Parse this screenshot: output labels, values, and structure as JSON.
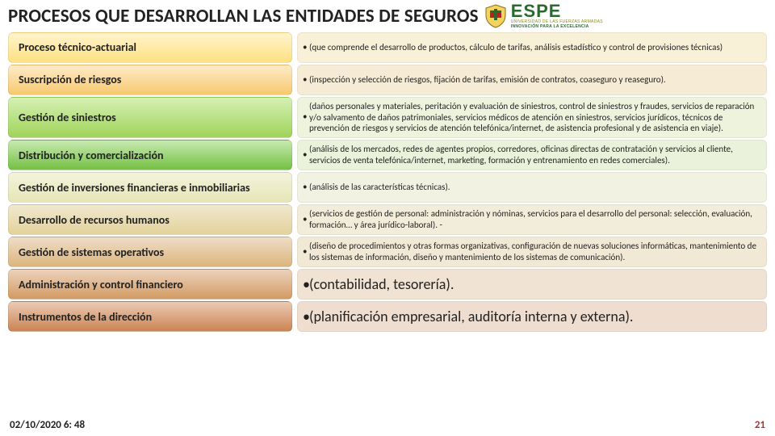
{
  "title": "PROCESOS QUE DESARROLLAN LAS ENTIDADES DE SEGUROS",
  "logo": {
    "big": "ESPE",
    "line1": "UNIVERSIDAD DE LAS FUERZAS ARMADAS",
    "line2": "INNOVACIÓN PARA LA EXCELENCIA"
  },
  "rows": [
    {
      "label": "Proceso técnico-actuarial",
      "desc": "(que comprende el desarrollo de productos, cálculo de tarifas, análisis estadístico y control de provisiones técnicas)",
      "colors": {
        "left_from": "#fff4cc",
        "left_to": "#ffe083",
        "right": "#f9f0d8"
      },
      "big": false
    },
    {
      "label": "Suscripción de riesgos",
      "desc": "(inspección y selección de riesgos, fijación de tarifas, emisión de contratos, coaseguro y reaseguro).",
      "colors": {
        "left_from": "#fdebc8",
        "left_to": "#f8c96f",
        "right": "#f6ecd6"
      },
      "big": false
    },
    {
      "label": "Gestión de siniestros",
      "desc": "(daños personales y materiales, peritación y evaluación de siniestros, control de siniestros y fraudes, servicios de reparación y/o salvamento de daños patrimoniales, servicios médicos de atención en siniestros, servicios jurídicos, técnicos de prevención de riesgos y servicios de atención telefónica/internet, de asistencia profesional y de asistencia en viaje).",
      "colors": {
        "left_from": "#d6f0b4",
        "left_to": "#9fd45a",
        "right": "#eef3de"
      },
      "big": false
    },
    {
      "label": "Distribución y comercialización",
      "desc": "(análisis de los mercados, redes de agentes propios, corredores, oficinas directas de contratación y servicios al cliente, servicios de venta telefónica/internet, marketing, formación y entrenamiento en redes comerciales).",
      "colors": {
        "left_from": "#c7eab0",
        "left_to": "#74c043",
        "right": "#eaf2db"
      },
      "big": false
    },
    {
      "label": "Gestión de inversiones financieras e inmobiliarias",
      "desc": "(análisis de las características técnicas).",
      "colors": {
        "left_from": "#f3f3dc",
        "left_to": "#e6e6b8",
        "right": "#f2f2e3"
      },
      "big": false
    },
    {
      "label": "Desarrollo de recursos humanos",
      "desc": "(servicios de gestión de personal: administración y nóminas, servicios para el desarrollo del personal: selección, evaluación, formación… y área jurídico-laboral). -",
      "colors": {
        "left_from": "#f1e8cf",
        "left_to": "#e3d29b",
        "right": "#f2ecda"
      },
      "big": false
    },
    {
      "label": "Gestión de sistemas operativos",
      "desc": "(diseño de procedimientos y otras formas organizativas, configuración de nuevas soluciones informáticas, mantenimiento de los sistemas de información, diseño y mantenimiento de los sistemas de comunicación).",
      "colors": {
        "left_from": "#efddc6",
        "left_to": "#dcb57d",
        "right": "#f1e8d6"
      },
      "big": false
    },
    {
      "label": "Administración y control financiero",
      "desc": "(contabilidad, tesorería).",
      "colors": {
        "left_from": "#ecd3bc",
        "left_to": "#d39a62",
        "right": "#f0e3d3"
      },
      "big": true
    },
    {
      "label": "Instrumentos de la dirección",
      "desc": "(planificación empresarial, auditoría interna y externa).",
      "colors": {
        "left_from": "#eacbb4",
        "left_to": "#cc8352",
        "right": "#efded0"
      },
      "big": true
    }
  ],
  "footer": {
    "date": "02/10/2020 6: 48",
    "page": "21"
  }
}
